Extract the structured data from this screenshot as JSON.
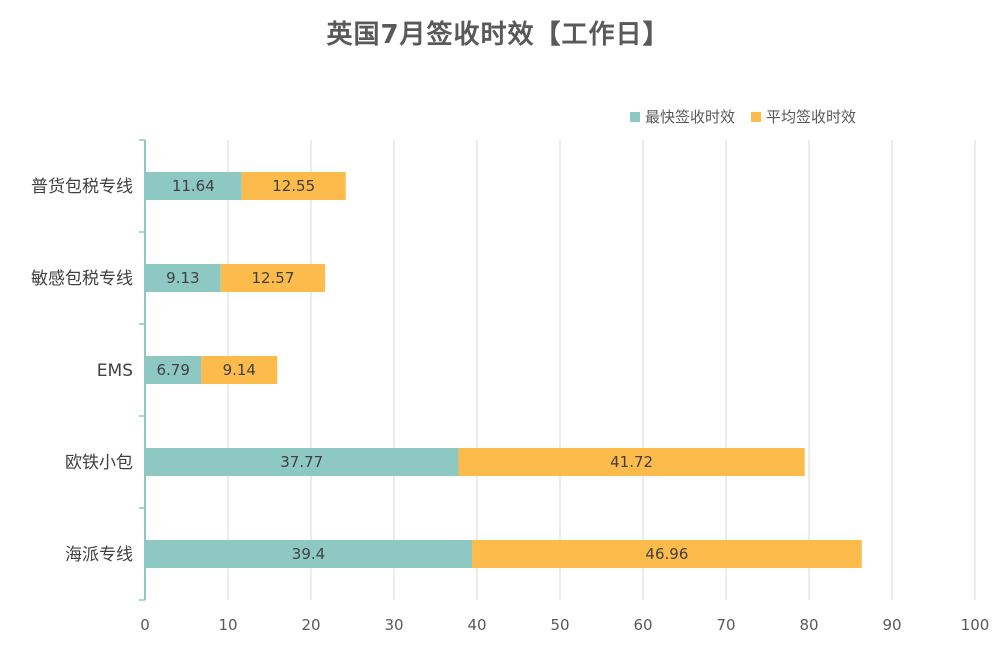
{
  "chart_data": {
    "type": "bar",
    "orientation": "horizontal",
    "stacked": true,
    "title": "英国7月签收时效【工作日】",
    "categories": [
      "普货包税专线",
      "敏感包税专线",
      "EMS",
      "欧铁小包",
      "海派专线"
    ],
    "series": [
      {
        "name": "最快签收时效",
        "color": "#8EC8C3",
        "values": [
          11.64,
          9.13,
          6.79,
          37.77,
          39.4
        ]
      },
      {
        "name": "平均签收时效",
        "color": "#FDBB4C",
        "values": [
          12.55,
          12.57,
          9.14,
          41.72,
          46.96
        ]
      }
    ],
    "xlim": [
      0,
      100
    ],
    "xticks": [
      0,
      10,
      20,
      30,
      40,
      50,
      60,
      70,
      80,
      90,
      100
    ],
    "grid": "vertical",
    "legend": "top-right"
  }
}
